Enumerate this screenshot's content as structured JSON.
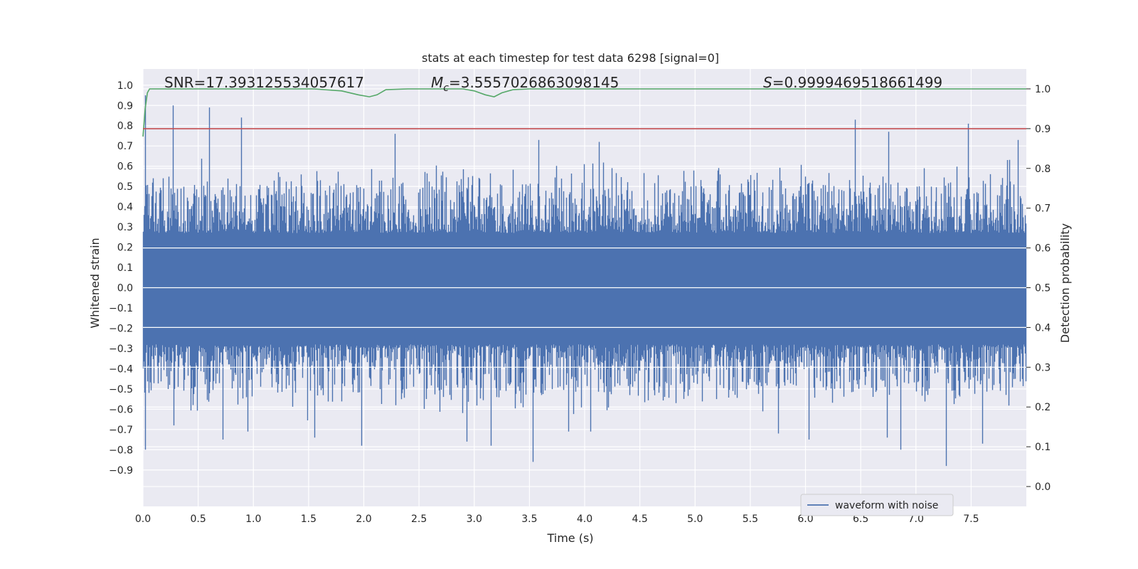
{
  "chart_data": {
    "type": "line",
    "title": "stats at each timestep for test data 6298 [signal=0]",
    "xlabel": "Time (s)",
    "ylabel_left": "Whitened strain",
    "ylabel_right": "Detection probability",
    "xlim": [
      0.0,
      8.0
    ],
    "ylim_left": [
      -1.08,
      1.08
    ],
    "ylim_right": [
      -0.05,
      1.05
    ],
    "x_ticks": [
      "0.0",
      "0.5",
      "1.0",
      "1.5",
      "2.0",
      "2.5",
      "3.0",
      "3.5",
      "4.0",
      "4.5",
      "5.0",
      "5.5",
      "6.0",
      "6.5",
      "7.0",
      "7.5"
    ],
    "y_ticks_left": [
      "1.0",
      "0.9",
      "0.8",
      "0.7",
      "0.6",
      "0.5",
      "0.4",
      "0.3",
      "0.2",
      "0.1",
      "0.0",
      "−0.1",
      "−0.2",
      "−0.3",
      "−0.4",
      "−0.5",
      "−0.6",
      "−0.7",
      "−0.8",
      "−0.9"
    ],
    "y_ticks_right": [
      "1.0",
      "0.9",
      "0.8",
      "0.7",
      "0.6",
      "0.5",
      "0.4",
      "0.3",
      "0.2",
      "0.1",
      "0.0"
    ],
    "grid": true,
    "annotations": {
      "snr": "SNR=17.393125534057617",
      "mc_symbol": "M",
      "mc_sub": "c",
      "mc_value": "=3.5557026863098145",
      "s_symbol": "S",
      "s_value": "=0.9999469518661499"
    },
    "legend": {
      "label": "waveform with noise",
      "placement": "lower-right"
    },
    "series": [
      {
        "name": "waveform with noise",
        "axis": "left",
        "color": "#4c72b0",
        "sample_rate": 2048,
        "duration": 8.0,
        "band_low": -0.28,
        "band_high": 0.27,
        "spikes": [
          {
            "t": 0.02,
            "v": 0.95
          },
          {
            "t": 0.27,
            "v": 0.9
          },
          {
            "t": 0.6,
            "v": 0.89
          },
          {
            "t": 0.89,
            "v": 0.84
          },
          {
            "t": 2.28,
            "v": 0.76
          },
          {
            "t": 6.45,
            "v": 0.83
          },
          {
            "t": 6.75,
            "v": 0.77
          },
          {
            "t": 7.47,
            "v": 0.81
          },
          {
            "t": 3.58,
            "v": 0.73
          },
          {
            "t": 4.13,
            "v": 0.72
          },
          {
            "t": 7.92,
            "v": 0.73
          },
          {
            "t": 0.02,
            "v": -0.8
          },
          {
            "t": 3.53,
            "v": -0.86
          },
          {
            "t": 7.27,
            "v": -0.88
          },
          {
            "t": 7.6,
            "v": -0.77
          },
          {
            "t": 0.72,
            "v": -0.75
          },
          {
            "t": 1.98,
            "v": -0.78
          },
          {
            "t": 3.15,
            "v": -0.78
          },
          {
            "t": 2.93,
            "v": -0.76
          },
          {
            "t": 6.86,
            "v": -0.8
          },
          {
            "t": 6.74,
            "v": -0.74
          },
          {
            "t": 4.05,
            "v": -0.71
          },
          {
            "t": 5.75,
            "v": -0.72
          },
          {
            "t": 6.03,
            "v": -0.75
          },
          {
            "t": 0.95,
            "v": -0.71
          },
          {
            "t": 1.55,
            "v": -0.74
          },
          {
            "t": 3.85,
            "v": -0.71
          },
          {
            "t": 0.28,
            "v": -0.68
          }
        ]
      },
      {
        "name": "Detection probability",
        "axis": "right",
        "color": "#55a868",
        "t": [
          0.0,
          0.02,
          0.04,
          0.06,
          0.08,
          1.2,
          1.55,
          1.8,
          1.95,
          2.05,
          2.12,
          2.2,
          2.4,
          2.9,
          3.0,
          3.1,
          3.18,
          3.25,
          3.35,
          3.5,
          8.0
        ],
        "v": [
          0.88,
          0.95,
          0.99,
          1.0,
          1.0,
          1.0,
          1.0,
          0.995,
          0.985,
          0.98,
          0.985,
          0.998,
          1.0,
          1.0,
          0.995,
          0.985,
          0.98,
          0.99,
          0.998,
          1.0,
          1.0
        ]
      },
      {
        "name": "threshold",
        "axis": "right",
        "color": "#c44e52",
        "t": [
          0.0,
          8.0
        ],
        "v": [
          0.9,
          0.9
        ]
      }
    ]
  }
}
